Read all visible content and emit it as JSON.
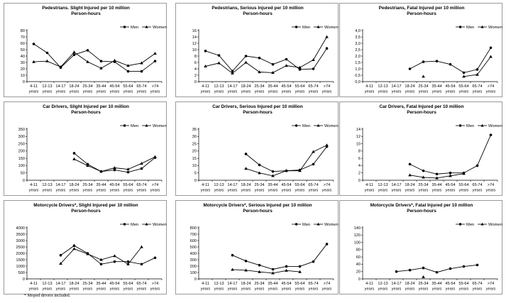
{
  "footnote": "* Moped drivers included.",
  "categories": [
    "4-11\nyears",
    "12-13\nyears",
    "14-17\nyears",
    "18-24\nyears",
    "25-34\nyears",
    "35-44\nyears",
    "45-54\nyears",
    "55-64\nyears",
    "65-74\nyears",
    ">74\nyears"
  ],
  "legend": {
    "men": "Men",
    "women": "Women"
  },
  "chart_data": [
    {
      "type": "line",
      "title": "Pedestrians. Slight Injured per 10 million\nPerson-hours",
      "ylim": [
        0,
        80
      ],
      "ystep": 10,
      "decimals": 0,
      "grid": false,
      "legend": "top-right",
      "series": [
        {
          "name": "Men",
          "marker": "circle",
          "values": [
            59,
            45,
            22,
            42,
            49,
            32,
            31,
            16,
            16,
            32
          ]
        },
        {
          "name": "Women",
          "marker": "triangle",
          "values": [
            31,
            32,
            23,
            46,
            31,
            21,
            33,
            25,
            29,
            44
          ]
        }
      ]
    },
    {
      "type": "line",
      "title": "Pedestrians, Serious Injured per 10 million\nPerson-hours",
      "ylim": [
        0,
        16
      ],
      "ystep": 2,
      "decimals": 0,
      "grid": false,
      "legend": "top-right",
      "series": [
        {
          "name": "Men",
          "marker": "circle",
          "values": [
            9.6,
            8.2,
            3.3,
            8.0,
            7.4,
            5.4,
            7.0,
            3.8,
            4.0,
            10.4
          ]
        },
        {
          "name": "Women",
          "marker": "triangle",
          "values": [
            4.8,
            5.8,
            2.6,
            6.0,
            3.0,
            2.8,
            5.0,
            4.4,
            6.8,
            14.0
          ]
        }
      ]
    },
    {
      "type": "line",
      "title": "Pedestrians, Fatal Injured per 10 million\nPerson-hours",
      "ylim": [
        0,
        4
      ],
      "ystep": 0.5,
      "decimals": 1,
      "grid": false,
      "legend": "top-right",
      "series": [
        {
          "name": "Men",
          "marker": "circle",
          "values": [
            null,
            null,
            null,
            1.0,
            1.55,
            1.6,
            1.35,
            0.7,
            0.95,
            2.65
          ]
        },
        {
          "name": "Women",
          "marker": "triangle",
          "values": [
            null,
            null,
            null,
            null,
            0.4,
            null,
            null,
            0.4,
            0.55,
            1.95
          ]
        }
      ]
    },
    {
      "type": "line",
      "title": "Car Drivers, Slight Injured per 10 million\nPerson-hours",
      "ylim": [
        0,
        350
      ],
      "ystep": 50,
      "decimals": 0,
      "grid": false,
      "legend": "top-right",
      "series": [
        {
          "name": "Men",
          "marker": "circle",
          "values": [
            null,
            null,
            null,
            185,
            110,
            60,
            70,
            55,
            80,
            155
          ]
        },
        {
          "name": "Women",
          "marker": "triangle",
          "values": [
            null,
            null,
            null,
            145,
            100,
            60,
            85,
            75,
            115,
            160
          ]
        }
      ]
    },
    {
      "type": "line",
      "title": "Car Drivers, Serious Injured per 10 million\nPerson-hours",
      "ylim": [
        0,
        35
      ],
      "ystep": 5,
      "decimals": 0,
      "grid": false,
      "legend": "top-right",
      "series": [
        {
          "name": "Men",
          "marker": "circle",
          "values": [
            null,
            null,
            null,
            18,
            10.5,
            6,
            6.5,
            7,
            11,
            23
          ]
        },
        {
          "name": "Women",
          "marker": "triangle",
          "values": [
            null,
            null,
            null,
            8,
            5,
            3,
            6.5,
            6.5,
            19.5,
            24
          ]
        }
      ]
    },
    {
      "type": "line",
      "title": "Car Drivers, Fatal Injured per 10 million\nPerson-hours",
      "ylim": [
        0,
        14
      ],
      "ystep": 2,
      "decimals": 0,
      "grid": false,
      "legend": "top-right",
      "series": [
        {
          "name": "Men",
          "marker": "circle",
          "values": [
            null,
            null,
            null,
            4.4,
            2.6,
            1.7,
            2.0,
            2.0,
            4.0,
            12.4
          ]
        },
        {
          "name": "Women",
          "marker": "triangle",
          "values": [
            null,
            null,
            null,
            1.4,
            0.8,
            0.6,
            1.2,
            1.8,
            null,
            null
          ]
        }
      ]
    },
    {
      "type": "line",
      "title": "Motorcycle Drivers*, Slight Injured per 10 million\nPerson-hours",
      "ylim": [
        0,
        4000
      ],
      "ystep": 500,
      "decimals": 0,
      "grid": false,
      "legend": "top-right",
      "series": [
        {
          "name": "Men",
          "marker": "circle",
          "values": [
            null,
            null,
            1850,
            2600,
            2000,
            1150,
            1350,
            1350,
            1150,
            1650
          ]
        },
        {
          "name": "Women",
          "marker": "triangle",
          "values": [
            null,
            null,
            1200,
            2350,
            1950,
            1500,
            1800,
            1150,
            2500,
            null
          ]
        }
      ]
    },
    {
      "type": "line",
      "title": "Motorcycle Drivers*, Serious Injured per 10 million\nPerson-hours",
      "ylim": [
        0,
        800
      ],
      "ystep": 100,
      "decimals": 0,
      "grid": false,
      "legend": "top-right",
      "series": [
        {
          "name": "Men",
          "marker": "circle",
          "values": [
            null,
            null,
            370,
            280,
            215,
            150,
            195,
            195,
            270,
            545
          ]
        },
        {
          "name": "Women",
          "marker": "triangle",
          "values": [
            null,
            null,
            145,
            135,
            110,
            90,
            130,
            110,
            null,
            null
          ]
        }
      ]
    },
    {
      "type": "line",
      "title": "Motorcycle Drivers*, Fatal Injured per 10 million\nPerson-hours",
      "ylim": [
        0,
        140
      ],
      "ystep": 20,
      "decimals": 0,
      "grid": false,
      "legend": "top-right",
      "series": [
        {
          "name": "Men",
          "marker": "circle",
          "values": [
            null,
            null,
            20,
            24,
            30,
            18,
            28,
            34,
            38,
            null
          ]
        },
        {
          "name": "Women",
          "marker": "triangle",
          "values": [
            null,
            null,
            null,
            null,
            5,
            null,
            null,
            null,
            null,
            null
          ]
        }
      ]
    }
  ]
}
